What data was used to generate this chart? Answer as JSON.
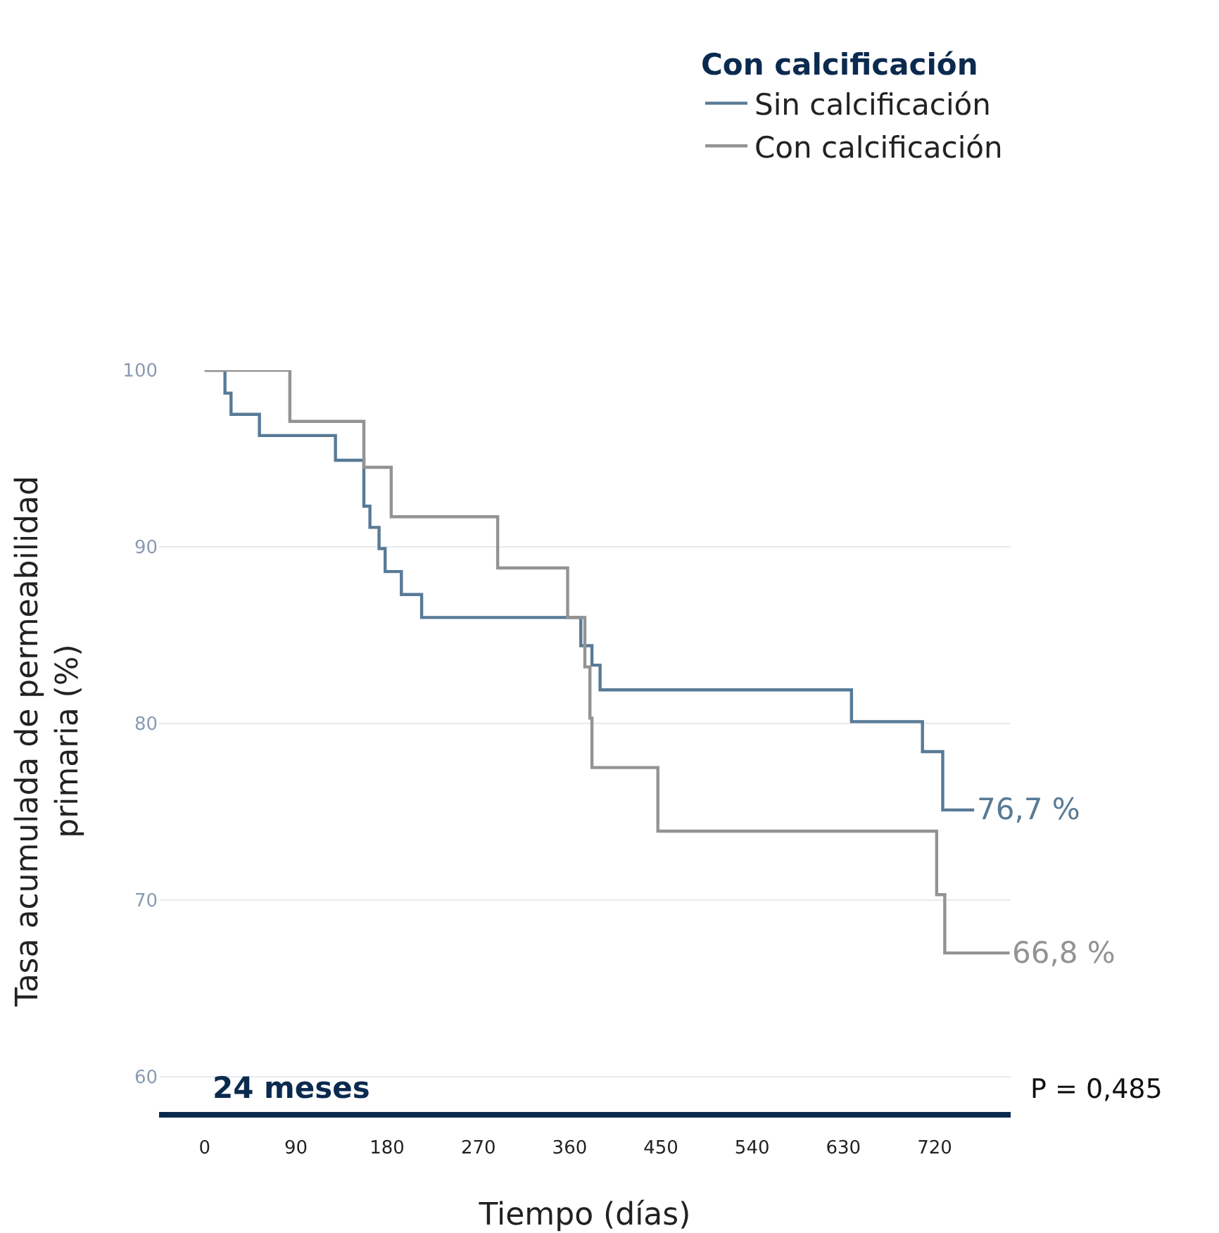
{
  "chart_data": {
    "type": "step",
    "xlabel": "Tiempo (días)",
    "ylabel": "Tasa acumulada de permeabilidad\nprimaria (%)",
    "legend_title": "Con calcificación",
    "series": [
      {
        "name": "Sin calcificación",
        "color": "#587a96",
        "x": [
          0,
          20,
          26,
          54,
          129,
          157,
          163,
          172,
          178,
          194,
          214,
          371,
          382,
          390,
          638,
          708,
          728,
          759
        ],
        "values": [
          100,
          98.7,
          97.5,
          96.3,
          94.9,
          92.3,
          91.1,
          89.9,
          88.6,
          87.3,
          86.0,
          84.4,
          83.3,
          81.9,
          80.1,
          78.4,
          75.1,
          75.1
        ]
      },
      {
        "name": "Con calcificación",
        "color": "#939393",
        "x": [
          0,
          84,
          157,
          184,
          289,
          358,
          375,
          380,
          382,
          447,
          722,
          730,
          794
        ],
        "values": [
          100,
          97.1,
          94.5,
          91.7,
          88.8,
          86.0,
          83.2,
          80.3,
          77.5,
          73.9,
          70.3,
          67.0,
          67.0
        ]
      }
    ],
    "annotations": [
      {
        "text": "76,7 %",
        "x": 759,
        "y": 75.1
      },
      {
        "text": "66,8 %",
        "x": 794,
        "y": 67.0
      },
      "24 meses",
      "P = 0,485"
    ],
    "xlim": [
      -45,
      795
    ],
    "ylim": [
      58,
      100
    ],
    "xticks": [
      0,
      90,
      180,
      270,
      360,
      450,
      540,
      630,
      720
    ],
    "yticks": [
      60,
      70,
      80,
      90,
      100
    ],
    "grid": "y",
    "legend": "top right",
    "line_style": "solid"
  }
}
